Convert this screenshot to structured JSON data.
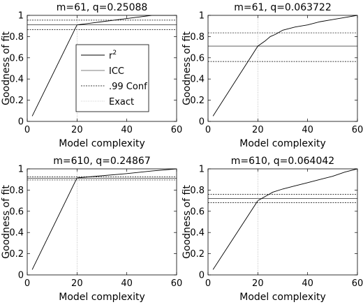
{
  "colors": {
    "axis": "#000000",
    "series": "#000000",
    "background": "#ffffff"
  },
  "legend": {
    "placement": "inside-first-subplot",
    "entries": [
      {
        "key": "r2",
        "label": "r",
        "sup": "2",
        "style": "solid"
      },
      {
        "key": "icc",
        "label": "ICC",
        "style": "solid-thin"
      },
      {
        "key": "conf",
        "label": ".99 Conf",
        "style": "dotted"
      },
      {
        "key": "exact",
        "label": "Exact",
        "style": "dotted-light"
      }
    ]
  },
  "chart_data": [
    {
      "type": "line",
      "title": "m=61, q=0.25088",
      "xlabel": "Model complexity",
      "ylabel": "Goodness of fit",
      "xlim": [
        0,
        60
      ],
      "ylim": [
        0,
        1
      ],
      "xticks": [
        0,
        20,
        40,
        60
      ],
      "yticks": [
        0,
        0.2,
        0.4,
        0.6,
        0.8,
        1
      ],
      "ytick_labels": [
        "0",
        "0.2",
        "0.4",
        "0.6",
        "0.8",
        "1"
      ],
      "grid": false,
      "series": [
        {
          "key": "r2",
          "x": [
            2,
            20,
            30,
            40,
            45,
            50,
            55,
            60
          ],
          "y": [
            0.05,
            0.91,
            0.94,
            0.97,
            0.985,
            1.0,
            1.0,
            1.0
          ]
        },
        {
          "key": "icc",
          "hline": 0.91
        },
        {
          "key": "conf",
          "hlines": [
            0.865,
            0.955
          ]
        },
        {
          "key": "exact",
          "vline": 20
        }
      ]
    },
    {
      "type": "line",
      "title": "m=61, q=0.063722",
      "xlabel": "Model complexity",
      "ylabel": "Goodness of fit",
      "xlim": [
        0,
        60
      ],
      "ylim": [
        0,
        1
      ],
      "xticks": [
        0,
        20,
        40,
        60
      ],
      "yticks": [
        0,
        0.2,
        0.4,
        0.6,
        0.8,
        1
      ],
      "ytick_labels": [
        "0",
        "0.2",
        "0.4",
        "0.6",
        "0.8",
        "1"
      ],
      "grid": false,
      "series": [
        {
          "key": "r2",
          "x": [
            2,
            20,
            23,
            25,
            27,
            30,
            35,
            40,
            45,
            50,
            55,
            60
          ],
          "y": [
            0.05,
            0.71,
            0.76,
            0.8,
            0.82,
            0.86,
            0.89,
            0.91,
            0.94,
            0.96,
            0.98,
            1.0
          ]
        },
        {
          "key": "icc",
          "hline": 0.71
        },
        {
          "key": "conf",
          "hlines": [
            0.565,
            0.835
          ]
        },
        {
          "key": "exact",
          "vline": 20
        }
      ]
    },
    {
      "type": "line",
      "title": "m=610, q=0.24867",
      "xlabel": "Model complexity",
      "ylabel": "Goodness of fit",
      "xlim": [
        0,
        60
      ],
      "ylim": [
        0,
        1
      ],
      "xticks": [
        0,
        20,
        40,
        60
      ],
      "yticks": [
        0,
        0.2,
        0.4,
        0.6,
        0.8,
        1
      ],
      "ytick_labels": [
        "0",
        "0.2",
        "0.4",
        "0.6",
        "0.8",
        "1"
      ],
      "grid": false,
      "series": [
        {
          "key": "r2",
          "x": [
            2,
            20,
            30,
            40,
            50,
            60
          ],
          "y": [
            0.05,
            0.915,
            0.935,
            0.955,
            0.98,
            1.0
          ]
        },
        {
          "key": "icc",
          "hline": 0.91
        },
        {
          "key": "conf",
          "hlines": [
            0.895,
            0.925
          ]
        },
        {
          "key": "exact",
          "vline": 20
        }
      ]
    },
    {
      "type": "line",
      "title": "m=610, q=0.064042",
      "xlabel": "Model complexity",
      "ylabel": "Goodness of fit",
      "xlim": [
        0,
        60
      ],
      "ylim": [
        0,
        1
      ],
      "xticks": [
        0,
        20,
        40,
        60
      ],
      "yticks": [
        0,
        0.2,
        0.4,
        0.6,
        0.8,
        1
      ],
      "ytick_labels": [
        "0",
        "0.2",
        "0.4",
        "0.6",
        "0.8",
        "1"
      ],
      "grid": false,
      "series": [
        {
          "key": "r2",
          "x": [
            2,
            20,
            23,
            26,
            30,
            35,
            40,
            45,
            50,
            55,
            60
          ],
          "y": [
            0.05,
            0.7,
            0.74,
            0.78,
            0.81,
            0.84,
            0.87,
            0.9,
            0.93,
            0.97,
            1.0
          ]
        },
        {
          "key": "icc",
          "hline": 0.72
        },
        {
          "key": "conf",
          "hlines": [
            0.68,
            0.76
          ]
        },
        {
          "key": "exact",
          "vline": 20
        }
      ]
    }
  ]
}
